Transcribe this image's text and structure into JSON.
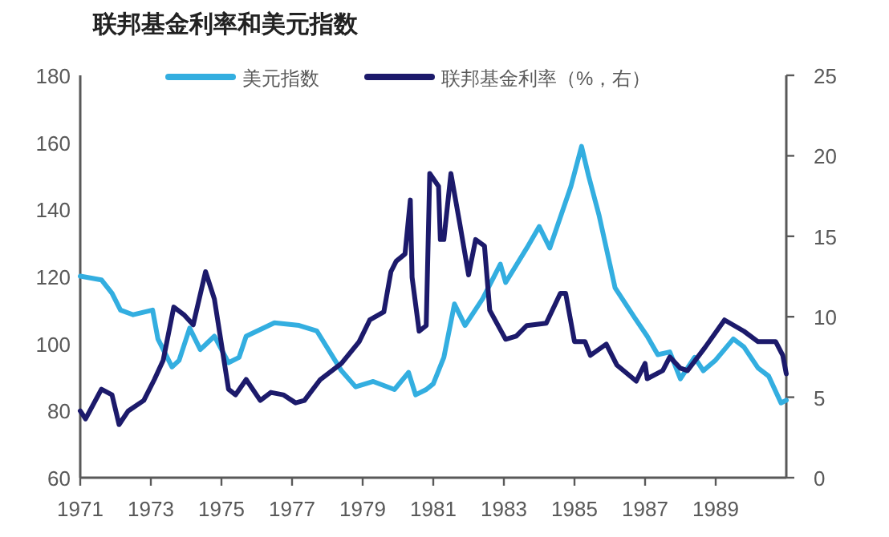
{
  "chart_data": {
    "type": "line",
    "title": "联邦基金利率和美元指数",
    "legend": "top",
    "grid": false,
    "xlim": [
      1971,
      1991
    ],
    "xticks": [
      1971,
      1973,
      1975,
      1977,
      1979,
      1981,
      1983,
      1985,
      1987,
      1989
    ],
    "ylim": [
      60,
      180
    ],
    "yticks": [
      60,
      80,
      100,
      120,
      140,
      160,
      180
    ],
    "y2lim": [
      0,
      25
    ],
    "y2ticks": [
      0,
      5,
      10,
      15,
      20,
      25
    ],
    "series": [
      {
        "name": "美元指数",
        "color": "#33aee0",
        "x": [
          1971.0,
          1971.6,
          1971.9,
          1972.14,
          1972.5,
          1973.05,
          1973.2,
          1973.6,
          1973.8,
          1974.1,
          1974.4,
          1974.8,
          1975.2,
          1975.5,
          1975.7,
          1976.5,
          1977.2,
          1977.7,
          1978.4,
          1978.8,
          1979.3,
          1979.9,
          1980.3,
          1980.5,
          1980.8,
          1981.0,
          1981.3,
          1981.6,
          1981.9,
          1982.4,
          1982.9,
          1983.05,
          1983.65,
          1984.0,
          1984.3,
          1984.9,
          1985.2,
          1985.4,
          1985.7,
          1986.15,
          1986.7,
          1987.06,
          1987.36,
          1987.7,
          1988.0,
          1988.4,
          1988.65,
          1989.0,
          1989.5,
          1989.8,
          1990.2,
          1990.5,
          1990.85,
          1991.0
        ],
        "values": [
          120.1,
          119,
          115,
          110,
          108.6,
          110,
          101.4,
          93,
          95,
          104.6,
          98.2,
          102.2,
          94.3,
          95.9,
          102.2,
          106.2,
          105.4,
          103.8,
          91.9,
          87.1,
          88.7,
          86.3,
          91.4,
          84.7,
          86.3,
          88,
          95.9,
          111.8,
          105.4,
          113.4,
          123.7,
          118.2,
          128.5,
          134.9,
          128.5,
          146.9,
          158.8,
          150,
          138.1,
          116.6,
          107.8,
          102.2,
          96.7,
          97.5,
          89.5,
          95.9,
          91.9,
          95.1,
          101.4,
          99,
          92.7,
          90.3,
          82.3,
          83.1
        ]
      },
      {
        "name": "联邦基金利率（%，右）",
        "color": "#1c1a6b",
        "axis": "y2",
        "x": [
          1971.0,
          1971.15,
          1971.6,
          1971.9,
          1972.1,
          1972.36,
          1972.8,
          1973.1,
          1973.35,
          1973.65,
          1973.95,
          1974.2,
          1974.55,
          1974.8,
          1975.2,
          1975.4,
          1975.7,
          1976.1,
          1976.4,
          1976.75,
          1977.1,
          1977.35,
          1977.8,
          1978.4,
          1978.9,
          1979.2,
          1979.6,
          1979.8,
          1979.95,
          1980.2,
          1980.35,
          1980.4,
          1980.6,
          1980.8,
          1980.9,
          1981.15,
          1981.2,
          1981.3,
          1981.5,
          1981.75,
          1982.0,
          1982.2,
          1982.45,
          1982.6,
          1983.05,
          1983.35,
          1983.65,
          1984.2,
          1984.6,
          1984.75,
          1985.0,
          1985.3,
          1985.45,
          1985.9,
          1986.2,
          1986.75,
          1987.0,
          1987.06,
          1987.5,
          1987.7,
          1988.0,
          1988.2,
          1988.7,
          1989.25,
          1989.8,
          1990.2,
          1990.7,
          1990.9,
          1991.0
        ],
        "values": [
          4.15,
          3.65,
          5.5,
          5.15,
          3.3,
          4.15,
          4.8,
          6.1,
          7.3,
          10.6,
          10.1,
          9.5,
          12.8,
          11.1,
          5.5,
          5.15,
          6.1,
          4.8,
          5.3,
          5.15,
          4.65,
          4.8,
          6.1,
          7.1,
          8.45,
          9.8,
          10.3,
          12.8,
          13.45,
          13.9,
          17.25,
          12.45,
          9.1,
          9.45,
          18.9,
          18.1,
          14.8,
          14.8,
          18.9,
          15.8,
          12.6,
          14.8,
          14.4,
          10.4,
          8.6,
          8.8,
          9.45,
          9.6,
          11.45,
          11.45,
          8.45,
          8.45,
          7.6,
          8.3,
          7.0,
          6.0,
          7.1,
          6.15,
          6.65,
          7.5,
          6.8,
          6.65,
          8.1,
          9.8,
          9.1,
          8.45,
          8.45,
          7.6,
          6.45
        ]
      }
    ]
  }
}
